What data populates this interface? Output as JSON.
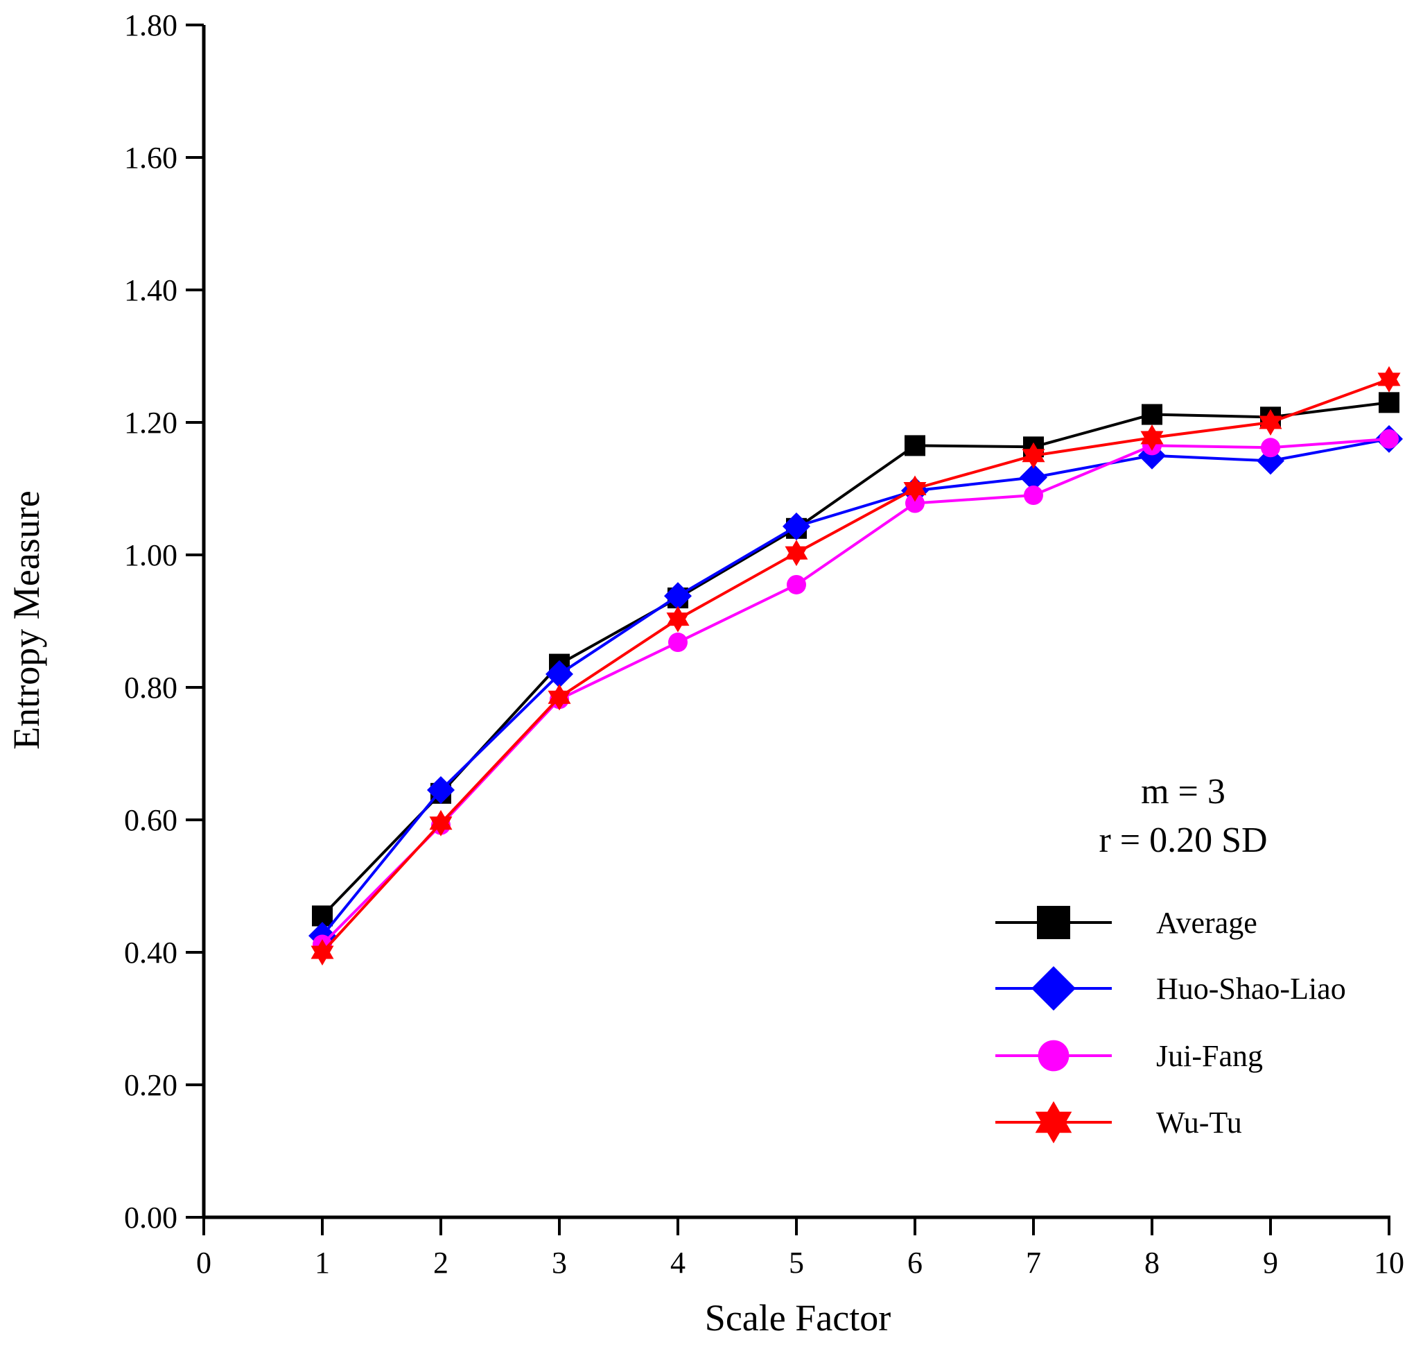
{
  "chart_data": {
    "type": "line",
    "xlabel": "Scale Factor",
    "ylabel": "Entropy Measure",
    "xlim": [
      0,
      10
    ],
    "ylim": [
      0,
      1.8
    ],
    "x_ticks": [
      "0",
      "1",
      "2",
      "3",
      "4",
      "5",
      "6",
      "7",
      "8",
      "9",
      "10"
    ],
    "y_ticks": [
      "0.00",
      "0.20",
      "0.40",
      "0.60",
      "0.80",
      "1.00",
      "1.20",
      "1.40",
      "1.60",
      "1.80"
    ],
    "grid": false,
    "annotations": [
      "m = 3",
      "r = 0.20 SD"
    ],
    "legend_position": "bottom-right",
    "x": [
      1,
      2,
      3,
      4,
      5,
      6,
      7,
      8,
      9,
      10
    ],
    "series": [
      {
        "name": "Average",
        "color": "#000000",
        "marker": "square",
        "values": [
          0.455,
          0.64,
          0.835,
          0.935,
          1.04,
          1.165,
          1.163,
          1.212,
          1.208,
          1.23
        ]
      },
      {
        "name": "Huo-Shao-Liao",
        "color": "#0000ff",
        "marker": "diamond",
        "values": [
          0.425,
          0.645,
          0.82,
          0.938,
          1.043,
          1.097,
          1.117,
          1.15,
          1.142,
          1.175
        ]
      },
      {
        "name": "Jui-Fang",
        "color": "#ff00ff",
        "marker": "circle",
        "values": [
          0.412,
          0.592,
          0.782,
          0.868,
          0.955,
          1.078,
          1.09,
          1.165,
          1.162,
          1.175
        ]
      },
      {
        "name": "Wu-Tu",
        "color": "#ff0000",
        "marker": "star",
        "values": [
          0.4,
          0.595,
          0.785,
          0.903,
          1.003,
          1.1,
          1.15,
          1.177,
          1.2,
          1.265
        ]
      }
    ]
  }
}
